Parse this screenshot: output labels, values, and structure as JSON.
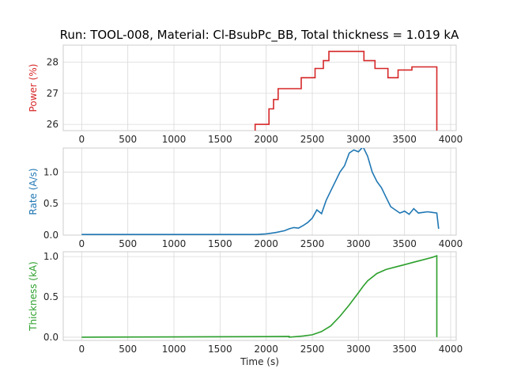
{
  "title": "Run: TOOL-008, Material: Cl-BsubPc_BB, Total thickness = 1.019 kA",
  "chart_data": [
    {
      "type": "line",
      "ylabel": "Power (%)",
      "color": "#d62728",
      "xlim": [
        -200,
        4060
      ],
      "ylim": [
        25.8,
        28.55
      ],
      "xticks": [
        0,
        500,
        1000,
        1500,
        2000,
        2500,
        3000,
        3500,
        4000
      ],
      "yticks": [
        26,
        27,
        28
      ],
      "step": true,
      "grid": true,
      "series": [
        {
          "x": [
            1880,
            1880,
            2030,
            2080,
            2130,
            2380,
            2530,
            2620,
            2680,
            2800,
            3060,
            3180,
            3320,
            3430,
            3580,
            3700,
            3850,
            3850
          ],
          "y": [
            25.8,
            26.0,
            26.5,
            26.8,
            27.15,
            27.5,
            27.8,
            28.05,
            28.35,
            28.35,
            28.05,
            27.8,
            27.5,
            27.75,
            27.85,
            27.85,
            27.85,
            25.8
          ]
        }
      ]
    },
    {
      "type": "line",
      "ylabel": "Rate (A/s)",
      "color": "#1f77b4",
      "xlim": [
        -200,
        4060
      ],
      "ylim": [
        0,
        1.38
      ],
      "xticks": [
        0,
        500,
        1000,
        1500,
        2000,
        2500,
        3000,
        3500,
        4000
      ],
      "yticks": [
        0.0,
        0.5,
        1.0
      ],
      "ytick_labels": [
        "0.0",
        "0.5",
        "1.0"
      ],
      "grid": true,
      "series": [
        {
          "x": [
            0,
            500,
            1000,
            1500,
            1900,
            2000,
            2100,
            2200,
            2250,
            2300,
            2350,
            2400,
            2450,
            2500,
            2550,
            2600,
            2650,
            2700,
            2750,
            2800,
            2850,
            2900,
            2950,
            3000,
            3050,
            3100,
            3150,
            3200,
            3250,
            3300,
            3350,
            3400,
            3450,
            3500,
            3550,
            3600,
            3650,
            3700,
            3750,
            3800,
            3850,
            3870
          ],
          "y": [
            0.01,
            0.01,
            0.01,
            0.01,
            0.01,
            0.02,
            0.04,
            0.07,
            0.1,
            0.12,
            0.11,
            0.15,
            0.2,
            0.27,
            0.4,
            0.34,
            0.55,
            0.7,
            0.85,
            1.0,
            1.1,
            1.3,
            1.35,
            1.32,
            1.4,
            1.25,
            1.0,
            0.85,
            0.75,
            0.6,
            0.45,
            0.4,
            0.35,
            0.38,
            0.33,
            0.42,
            0.35,
            0.36,
            0.37,
            0.36,
            0.35,
            0.1
          ]
        }
      ]
    },
    {
      "type": "line",
      "ylabel": "Thickness (kA)",
      "xlabel": "Time (s)",
      "color": "#2ca02c",
      "xlim": [
        -200,
        4060
      ],
      "ylim": [
        -0.04,
        1.06
      ],
      "xticks": [
        0,
        500,
        1000,
        1500,
        2000,
        2500,
        3000,
        3500,
        4000
      ],
      "yticks": [
        0.0,
        0.5,
        1.0
      ],
      "ytick_labels": [
        "0.0",
        "0.5",
        "1.0"
      ],
      "grid": true,
      "series": [
        {
          "x": [
            0,
            1000,
            2000,
            2250,
            2250,
            2400,
            2500,
            2600,
            2700,
            2800,
            2900,
            3000,
            3050,
            3100,
            3200,
            3300,
            3400,
            3500,
            3600,
            3700,
            3800,
            3850,
            3850
          ],
          "y": [
            0.0,
            0.003,
            0.007,
            0.01,
            0.0,
            0.015,
            0.03,
            0.07,
            0.14,
            0.26,
            0.4,
            0.55,
            0.63,
            0.7,
            0.79,
            0.84,
            0.87,
            0.9,
            0.93,
            0.96,
            0.99,
            1.01,
            0.0
          ]
        }
      ]
    }
  ]
}
